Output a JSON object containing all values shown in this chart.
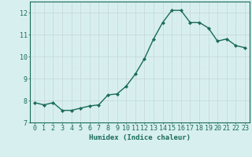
{
  "x": [
    0,
    1,
    2,
    3,
    4,
    5,
    6,
    7,
    8,
    9,
    10,
    11,
    12,
    13,
    14,
    15,
    16,
    17,
    18,
    19,
    20,
    21,
    22,
    23
  ],
  "y": [
    7.9,
    7.8,
    7.9,
    7.55,
    7.55,
    7.65,
    7.75,
    7.8,
    8.25,
    8.3,
    8.65,
    9.2,
    9.9,
    10.8,
    11.55,
    12.1,
    12.1,
    11.55,
    11.55,
    11.3,
    10.7,
    10.8,
    10.5,
    10.4
  ],
  "line_color": "#1a6b5a",
  "marker": "D",
  "marker_size": 2.2,
  "bg_color": "#d7efef",
  "grid_major_color": "#c8dada",
  "grid_minor_color": "#dce9e9",
  "xlabel": "Humidex (Indice chaleur)",
  "ylabel": "",
  "xlim": [
    -0.5,
    23.5
  ],
  "ylim": [
    7,
    12.5
  ],
  "yticks": [
    7,
    8,
    9,
    10,
    11,
    12
  ],
  "xticks": [
    0,
    1,
    2,
    3,
    4,
    5,
    6,
    7,
    8,
    9,
    10,
    11,
    12,
    13,
    14,
    15,
    16,
    17,
    18,
    19,
    20,
    21,
    22,
    23
  ],
  "label_fontsize": 6.5,
  "tick_fontsize": 6.0,
  "line_width": 1.0
}
